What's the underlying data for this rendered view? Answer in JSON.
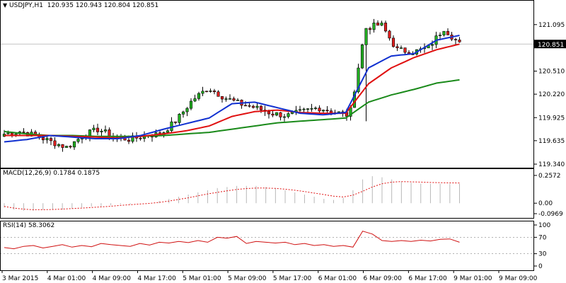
{
  "header": {
    "symbol_label": "USDJPY,H1",
    "ohlc_values": "120.935 120.943 120.804 120.851"
  },
  "chart_data": {
    "type": "candlestick",
    "symbol": "USDJPY",
    "timeframe": "H1",
    "ohlc": {
      "open": 120.935,
      "high": 120.943,
      "low": 120.804,
      "close": 120.851
    },
    "last_price_label": "120.851",
    "price_axis": {
      "ticks": [
        "121.095",
        "120.851",
        "120.510",
        "120.220",
        "119.925",
        "119.635",
        "119.340"
      ],
      "ylim": [
        119.34,
        121.28
      ]
    },
    "time_axis": {
      "ticks": [
        "3 Mar 2015",
        "4 Mar 01:00",
        "4 Mar 09:00",
        "4 Mar 17:00",
        "5 Mar 01:00",
        "5 Mar 09:00",
        "5 Mar 17:00",
        "6 Mar 01:00",
        "6 Mar 09:00",
        "6 Mar 17:00",
        "9 Mar 01:00",
        "9 Mar 09:00"
      ]
    },
    "key_prices": [
      119.72,
      119.75,
      119.7,
      119.62,
      119.55,
      119.7,
      119.78,
      119.68,
      119.65,
      119.7,
      119.72,
      119.9,
      120.15,
      120.3,
      120.18,
      120.1,
      120.05,
      119.98,
      119.95,
      120.0,
      120.05,
      120.0,
      119.95,
      121.05,
      121.1,
      120.78,
      120.75,
      120.8,
      121.05,
      120.85
    ],
    "moving_averages": {
      "fast_blue": [
        119.62,
        119.65,
        119.7,
        119.68,
        119.66,
        119.66,
        119.7,
        119.78,
        119.85,
        119.92,
        120.1,
        120.12,
        120.05,
        119.98,
        119.96,
        119.99,
        120.55,
        120.7,
        120.73,
        120.9,
        120.96
      ],
      "mid_red": [
        119.7,
        119.7,
        119.7,
        119.69,
        119.68,
        119.67,
        119.69,
        119.72,
        119.76,
        119.82,
        119.94,
        120.0,
        120.02,
        119.99,
        119.98,
        119.98,
        120.35,
        120.55,
        120.68,
        120.78,
        120.85
      ],
      "slow_green": [
        119.75,
        119.72,
        119.7,
        119.7,
        119.69,
        119.69,
        119.69,
        119.7,
        119.72,
        119.74,
        119.78,
        119.82,
        119.86,
        119.88,
        119.9,
        119.92,
        120.12,
        120.21,
        120.28,
        120.36,
        120.4
      ]
    },
    "macd": {
      "label": "MACD(12,26,9)",
      "values_label": "0.1784 0.1875",
      "ticks": [
        "0.2572",
        "0.00",
        "-0.0969"
      ],
      "ylim": [
        -0.11,
        0.27
      ],
      "histogram": [
        -0.04,
        -0.06,
        -0.07,
        -0.07,
        -0.06,
        -0.06,
        -0.06,
        -0.05,
        -0.04,
        -0.03,
        -0.03,
        -0.02,
        -0.01,
        -0.01,
        0.0,
        0.0,
        0.02,
        0.04,
        0.06,
        0.08,
        0.1,
        0.12,
        0.14,
        0.15,
        0.16,
        0.16,
        0.16,
        0.15,
        0.14,
        0.12,
        0.1,
        0.08,
        0.06,
        0.04,
        0.03,
        0.05,
        0.12,
        0.22,
        0.25,
        0.24,
        0.22,
        0.2,
        0.19,
        0.18,
        0.18,
        0.18,
        0.18,
        0.18
      ],
      "signal": [
        -0.03,
        -0.045,
        -0.055,
        -0.06,
        -0.06,
        -0.058,
        -0.054,
        -0.05,
        -0.045,
        -0.04,
        -0.034,
        -0.028,
        -0.02,
        -0.014,
        -0.008,
        -0.002,
        0.008,
        0.02,
        0.035,
        0.05,
        0.068,
        0.086,
        0.1,
        0.115,
        0.127,
        0.136,
        0.14,
        0.14,
        0.137,
        0.13,
        0.12,
        0.108,
        0.094,
        0.08,
        0.065,
        0.058,
        0.075,
        0.11,
        0.15,
        0.18,
        0.195,
        0.2,
        0.198,
        0.195,
        0.192,
        0.19,
        0.188,
        0.1875
      ]
    },
    "rsi": {
      "label": "RSI(14)",
      "value_label": "58.3062",
      "ticks": [
        "100",
        "70",
        "30",
        "0"
      ],
      "levels": [
        70,
        30
      ],
      "ylim": [
        0,
        100
      ],
      "values": [
        45,
        42,
        48,
        50,
        44,
        48,
        52,
        46,
        50,
        47,
        55,
        52,
        50,
        48,
        55,
        51,
        58,
        56,
        60,
        57,
        62,
        58,
        70,
        68,
        72,
        55,
        60,
        58,
        56,
        58,
        52,
        55,
        50,
        52,
        48,
        50,
        46,
        85,
        78,
        62,
        60,
        62,
        60,
        63,
        61,
        65,
        66,
        58
      ]
    }
  }
}
